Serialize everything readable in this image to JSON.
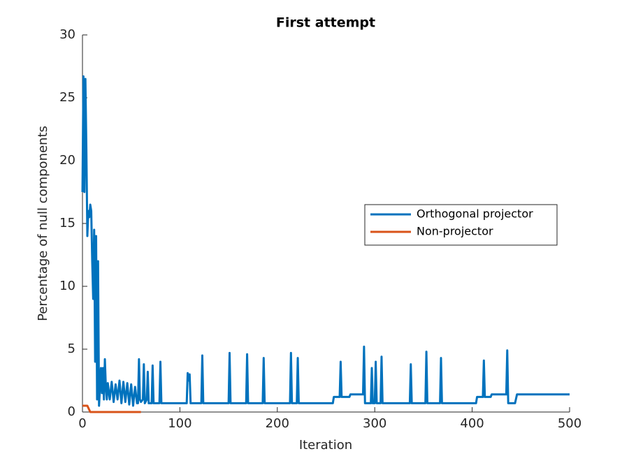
{
  "chart_data": {
    "type": "line",
    "title": "First attempt",
    "x_label": "Iteration",
    "y_label": "Percentage of null components",
    "xlim": [
      0,
      500
    ],
    "xticks": [
      0,
      100,
      200,
      300,
      400,
      500
    ],
    "ylim": [
      0,
      30
    ],
    "yticks": [
      0,
      5,
      10,
      15,
      20,
      25,
      30
    ],
    "grid": false,
    "legend_location": "east",
    "series": [
      {
        "name": "Orthogonal projector",
        "color": "#0072bd",
        "x": [
          0,
          1,
          2,
          3,
          4,
          5,
          6,
          7,
          8,
          9,
          10,
          11,
          12,
          13,
          14,
          15,
          16,
          17,
          18,
          19,
          20,
          21,
          22,
          23,
          24,
          25,
          26,
          28,
          30,
          32,
          34,
          36,
          38,
          40,
          42,
          44,
          46,
          48,
          50,
          52,
          54,
          56,
          57,
          58,
          59,
          60,
          62,
          63,
          64,
          66,
          67,
          68,
          71,
          72,
          73,
          79,
          80,
          81,
          107,
          108,
          109,
          110,
          111,
          122,
          123,
          124,
          150,
          151,
          152,
          168,
          169,
          170,
          185,
          186,
          187,
          213,
          214,
          215,
          220,
          221,
          222,
          257,
          258,
          264,
          265,
          266,
          274,
          275,
          288,
          289,
          290,
          296,
          297,
          298,
          300,
          301,
          302,
          306,
          307,
          308,
          336,
          337,
          338,
          352,
          353,
          354,
          367,
          368,
          369,
          404,
          405,
          411,
          412,
          413,
          419,
          420,
          435,
          436,
          437,
          444,
          446,
          500
        ],
        "values": [
          17.5,
          26.7,
          17.5,
          26.5,
          21,
          14,
          16,
          15.5,
          16.5,
          16,
          12,
          9,
          14.5,
          4,
          14,
          1,
          12,
          0.5,
          2,
          3.5,
          1.5,
          3.5,
          1,
          4.2,
          2,
          1,
          2.3,
          1,
          2.4,
          0.8,
          2.2,
          1,
          2.5,
          0.7,
          2.4,
          0.8,
          2.3,
          0.6,
          2.2,
          0.5,
          2,
          0.7,
          0.7,
          4.2,
          1,
          0.8,
          1,
          3.8,
          0.7,
          1,
          3.2,
          0.7,
          0.7,
          3.7,
          0.7,
          0.7,
          4,
          0.7,
          0.7,
          3.1,
          2.5,
          3,
          0.7,
          0.7,
          4.5,
          0.7,
          0.7,
          4.7,
          0.7,
          0.7,
          4.6,
          0.7,
          0.7,
          4.3,
          0.7,
          0.7,
          4.7,
          0.7,
          0.7,
          4.3,
          0.7,
          0.7,
          1.2,
          1.2,
          4,
          1.2,
          1.2,
          1.4,
          1.4,
          5.2,
          0.7,
          0.7,
          3.5,
          0.7,
          0.7,
          4,
          0.7,
          0.7,
          4.4,
          0.7,
          0.7,
          3.8,
          0.7,
          0.7,
          4.8,
          0.7,
          0.7,
          4.3,
          0.7,
          0.7,
          1.2,
          1.2,
          4.1,
          1.2,
          1.2,
          1.4,
          1.4,
          4.9,
          0.7,
          0.7,
          1.4,
          1.4
        ]
      },
      {
        "name": "Non-projector",
        "color": "#d95319",
        "x": [
          0,
          5,
          8,
          60
        ],
        "values": [
          0.5,
          0.5,
          0,
          0
        ]
      }
    ]
  }
}
